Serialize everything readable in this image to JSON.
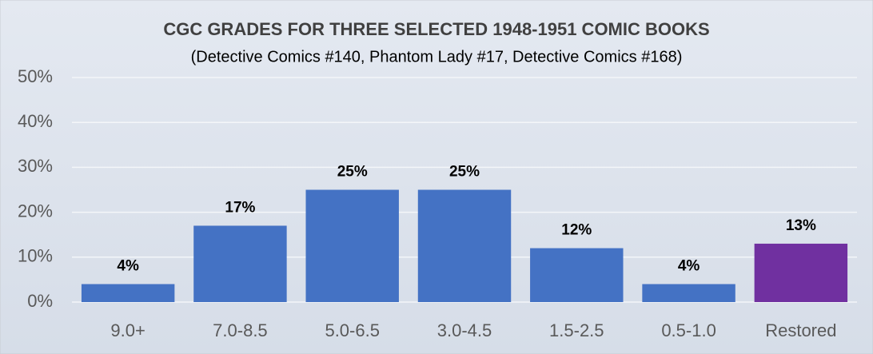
{
  "chart_data": {
    "type": "bar",
    "title": "CGC GRADES FOR THREE SELECTED 1948-1951 COMIC BOOKS",
    "subtitle": "(Detective Comics #140, Phantom Lady #17, Detective Comics #168)",
    "categories": [
      "9.0+",
      "7.0-8.5",
      "5.0-6.5",
      "3.0-4.5",
      "1.5-2.5",
      "0.5-1.0",
      "Restored"
    ],
    "values": [
      4,
      17,
      25,
      25,
      12,
      4,
      13
    ],
    "value_labels": [
      "4%",
      "17%",
      "25%",
      "25%",
      "12%",
      "4%",
      "13%"
    ],
    "colors": [
      "#4472c4",
      "#4472c4",
      "#4472c4",
      "#4472c4",
      "#4472c4",
      "#4472c4",
      "#7030a0"
    ],
    "ylim": [
      0,
      50
    ],
    "yticks": [
      {
        "value": 0,
        "label": "0%"
      },
      {
        "value": 10,
        "label": "10%"
      },
      {
        "value": 20,
        "label": "20%"
      },
      {
        "value": 30,
        "label": "30%"
      },
      {
        "value": 40,
        "label": "40%"
      },
      {
        "value": 50,
        "label": "50%"
      }
    ],
    "grid": true
  }
}
